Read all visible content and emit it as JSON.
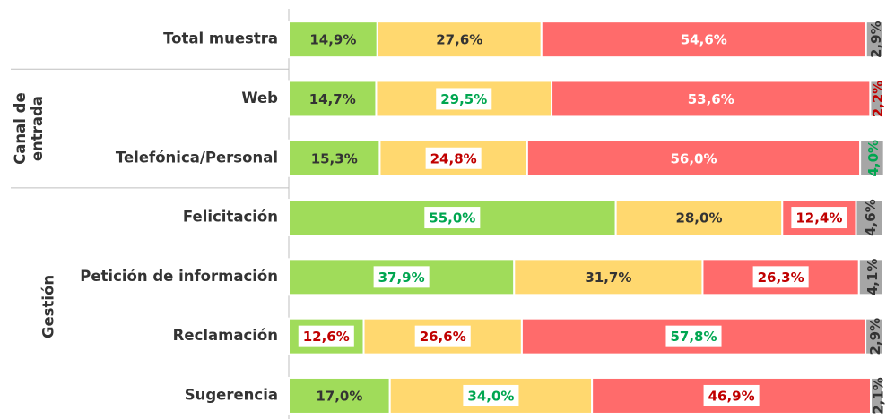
{
  "chart_data": {
    "type": "stacked-bar-horizontal",
    "categories": [
      "Total muestra",
      "Web",
      "Telefónica/Personal",
      "Felicitación",
      "Petición de información",
      "Reclamación",
      "Sugerencia"
    ],
    "groups": [
      {
        "label_lines": [
          "Canal de",
          "entrada"
        ],
        "from": 1,
        "to": 2
      },
      {
        "label_lines": [
          "Gestión"
        ],
        "from": 3,
        "to": 6
      }
    ],
    "xlim": [
      0,
      100
    ],
    "series": [
      {
        "color": "#a0dc5a",
        "label_color": "#333333",
        "values": [
          14.9,
          14.7,
          15.3,
          55.0,
          37.9,
          12.6,
          17.0
        ],
        "value_labels": [
          "14,9%",
          "14,7%",
          "15,3%",
          "55,0%",
          "37,9%",
          "12,6%",
          "17,0%"
        ],
        "label_box_colors": [
          null,
          null,
          null,
          "#00a650",
          "#00a650",
          "#c00000",
          null
        ]
      },
      {
        "color": "#ffd86f",
        "label_color": "#333333",
        "values": [
          27.6,
          29.5,
          24.8,
          28.0,
          31.7,
          26.6,
          34.0
        ],
        "value_labels": [
          "27,6%",
          "29,5%",
          "24,8%",
          "28,0%",
          "31,7%",
          "26,6%",
          "34,0%"
        ],
        "label_box_colors": [
          null,
          "#00a650",
          "#c00000",
          null,
          null,
          "#c00000",
          "#00a650"
        ]
      },
      {
        "color": "#ff6b6b",
        "label_color": "#ffffff",
        "values": [
          54.6,
          53.6,
          56.0,
          12.4,
          26.3,
          57.8,
          46.9
        ],
        "value_labels": [
          "54,6%",
          "53,6%",
          "56,0%",
          "12,4%",
          "26,3%",
          "57,8%",
          "46,9%"
        ],
        "label_box_colors": [
          null,
          null,
          null,
          "#c00000",
          "#c00000",
          "#00a650",
          "#c00000"
        ]
      },
      {
        "color": "#a6a6a6",
        "label_color": "#333333",
        "rotated_labels": true,
        "values": [
          2.9,
          2.2,
          4.0,
          4.6,
          4.1,
          2.9,
          2.1
        ],
        "value_labels": [
          "2,9%",
          "2,2%",
          "4,0%",
          "4,6%",
          "4,1%",
          "2,9%",
          "2,1%"
        ],
        "label_text_colors": [
          "#333333",
          "#c00000",
          "#00a650",
          "#333333",
          "#333333",
          "#333333",
          "#333333"
        ]
      }
    ]
  }
}
